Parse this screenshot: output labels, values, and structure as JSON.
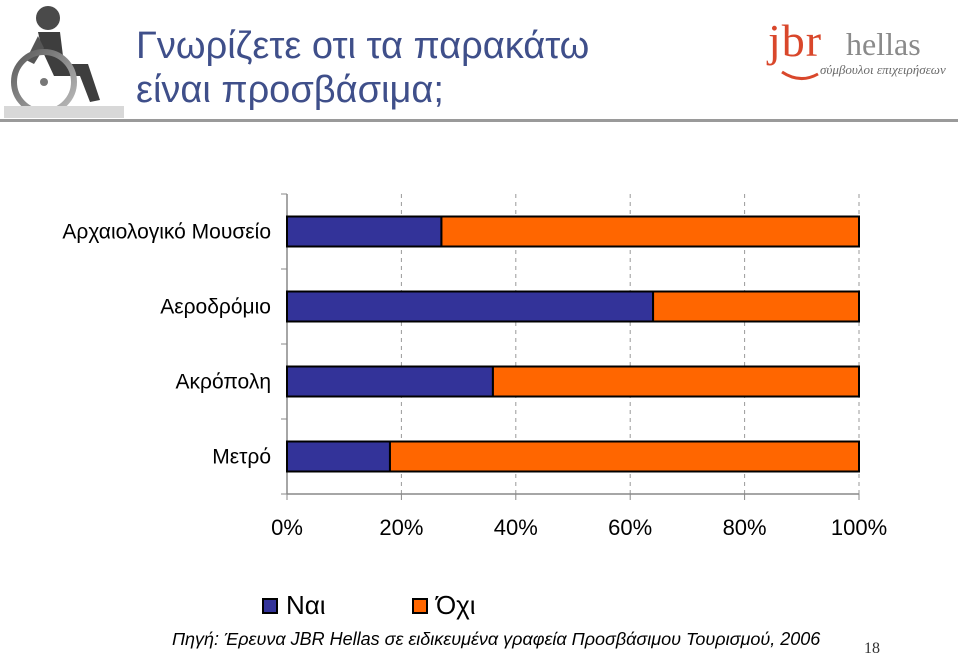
{
  "slide": {
    "title_line1": "Γνωρίζετε οτι τα παρακάτω",
    "title_line2": "είναι προσβάσιμα;",
    "logo_jbr": "jbr",
    "logo_hellas": "hellas",
    "logo_tagline": "σύμβουλοι επιχειρήσεων",
    "source": "Πηγή: Έρευνα JBR Hellas σε ειδικευμένα γραφεία Προσβάσιμου Τουρισμού, 2006",
    "page_number": "18"
  },
  "colors": {
    "title": "#3f4f8a",
    "nai": "#333399",
    "ochi": "#ff6600",
    "divider": "#9a9a9a"
  },
  "chart_data": {
    "type": "bar",
    "orientation": "horizontal",
    "stacked": "percent",
    "categories": [
      "Αρχαιολογικό Μουσείο",
      "Αεροδρόμιο",
      "Ακρόπολη",
      "Μετρό"
    ],
    "series": [
      {
        "name": "Ναι",
        "values": [
          27,
          64,
          36,
          18
        ],
        "color": "#333399"
      },
      {
        "name": "Όχι",
        "values": [
          73,
          36,
          64,
          82
        ],
        "color": "#ff6600"
      }
    ],
    "xticks": [
      "0%",
      "20%",
      "40%",
      "60%",
      "80%",
      "100%"
    ],
    "xlim": [
      0,
      100
    ],
    "grid": "vertical dashed",
    "legend": "bottom"
  }
}
